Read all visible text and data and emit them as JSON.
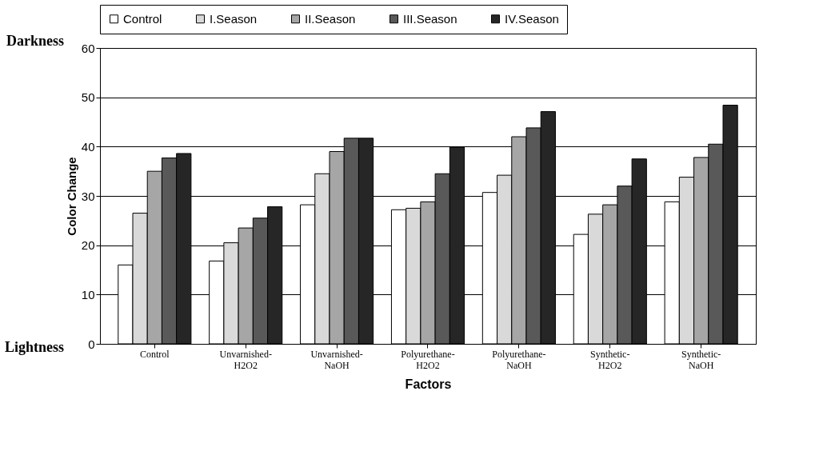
{
  "chart_data": {
    "type": "bar",
    "xlabel": "Factors",
    "ylabel": "Color Change",
    "categories": [
      "Control",
      "Unvarnished-H2O2",
      "Unvarnished-NaOH",
      "Polyurethane-H2O2",
      "Polyurethane-NaOH",
      "Synthetic-H2O2",
      "Synthetic-NaOH"
    ],
    "series": [
      {
        "name": "Control",
        "color": "#ffffff",
        "values": [
          16,
          16.8,
          28.2,
          27.2,
          30.7,
          22.2,
          28.8
        ]
      },
      {
        "name": "I.Season",
        "color": "#d9d9d9",
        "values": [
          26.5,
          20.5,
          34.5,
          27.5,
          34.2,
          26.3,
          33.8
        ]
      },
      {
        "name": "II.Season",
        "color": "#a6a6a6",
        "values": [
          35,
          23.5,
          39,
          28.8,
          42,
          28.2,
          37.8
        ]
      },
      {
        "name": "III.Season",
        "color": "#595959",
        "values": [
          37.7,
          25.5,
          41.7,
          34.5,
          43.8,
          32,
          40.5
        ]
      },
      {
        "name": "IV.Season",
        "color": "#262626",
        "values": [
          38.6,
          27.8,
          41.7,
          39.9,
          47.1,
          37.5,
          48.4
        ]
      }
    ],
    "ylim": [
      0,
      60
    ],
    "yticks": [
      0,
      10,
      20,
      30,
      40,
      50,
      60
    ],
    "grid": "y",
    "legend": "top",
    "annotations": [
      "Darkness",
      "Lightness"
    ]
  }
}
